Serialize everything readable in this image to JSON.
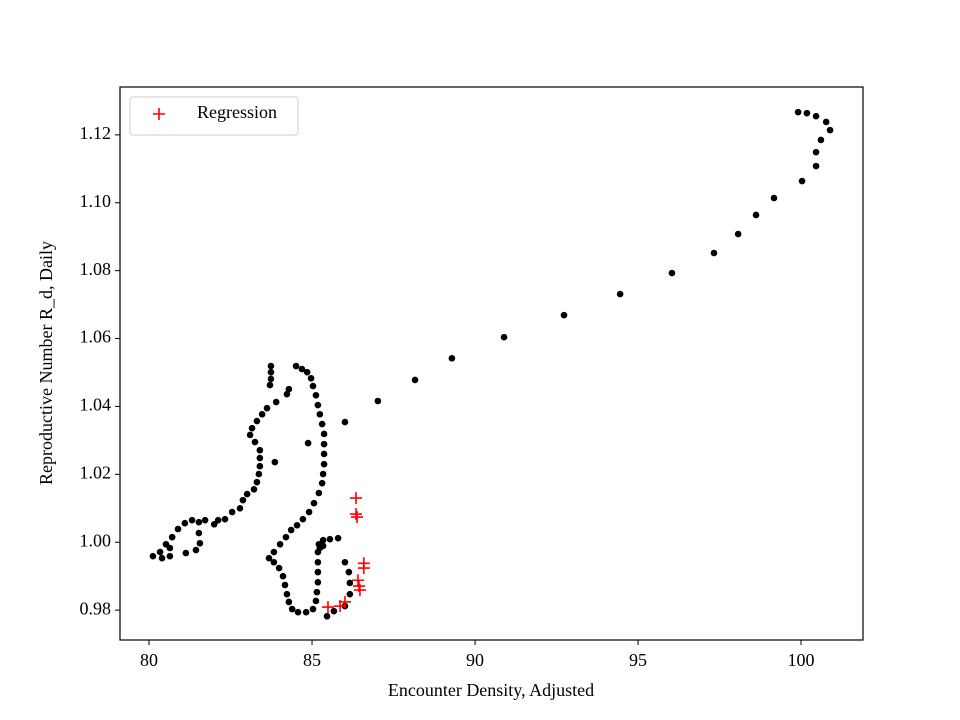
{
  "chart_data": {
    "type": "scatter",
    "xlabel": "Encounter Density, Adjusted",
    "ylabel": "Reproductive Number R_d, Daily",
    "xlim": [
      79.11,
      101.9
    ],
    "ylim": [
      0.9712,
      1.1341
    ],
    "xticks": [
      80,
      85,
      90,
      95,
      100
    ],
    "yticks": [
      0.98,
      {
        "value": 1,
        "label": "1.00"
      },
      1.02,
      1.04,
      1.06,
      1.08,
      {
        "value": 1.1,
        "label": "1.10"
      },
      1.12
    ],
    "legend": "upper left",
    "series": [
      {
        "color": "#000000",
        "marker": "circle",
        "x": [
          99.91,
          100.18,
          100.46,
          100.77,
          100.89,
          100.61,
          100.46,
          100.46,
          100.03,
          99.17,
          98.62,
          98.07,
          97.33,
          96.04,
          94.45,
          92.73,
          90.89,
          89.29,
          88.16,
          87.02,
          86.01,
          84.88,
          84.51,
          84.69,
          84.85,
          84.97,
          85.03,
          85.12,
          85.18,
          85.24,
          85.31,
          85.37,
          85.37,
          85.37,
          85.37,
          85.34,
          85.31,
          85.21,
          85.06,
          84.91,
          84.72,
          84.54,
          84.36,
          84.2,
          84.02,
          83.83,
          83.68,
          83.83,
          83.99,
          84.11,
          84.17,
          84.23,
          84.29,
          84.39,
          84.57,
          84.82,
          85.03,
          85.12,
          85.15,
          85.18,
          85.18,
          85.18,
          85.18,
          85.21,
          85.34,
          85.55,
          85.8,
          86.01,
          86.13,
          86.16,
          86.16,
          86.01,
          85.67,
          85.46,
          85.24,
          85.34,
          83.74,
          83.74,
          83.74,
          83.71,
          83.9,
          83.62,
          83.47,
          83.31,
          83.16,
          83.1,
          83.25,
          83.4,
          83.4,
          83.4,
          83.37,
          83.31,
          83.22,
          83.01,
          82.88,
          82.79,
          82.55,
          82.33,
          82.12,
          82.0,
          81.72,
          81.53,
          81.32,
          81.1,
          80.89,
          80.71,
          80.52,
          80.34,
          80.12,
          80.4,
          80.64,
          80.64,
          81.56,
          81.44,
          81.13,
          81.53,
          83.86,
          84.29,
          84.23
        ],
        "y": [
          1.1267,
          1.1264,
          1.1255,
          1.1238,
          1.1214,
          1.1185,
          1.1149,
          1.1108,
          1.1064,
          1.1014,
          1.0964,
          1.0908,
          1.0852,
          1.0793,
          1.0731,
          1.0669,
          1.0604,
          1.0542,
          1.0478,
          1.0416,
          1.0354,
          1.0292,
          1.0519,
          1.051,
          1.0501,
          1.0483,
          1.046,
          1.0433,
          1.0404,
          1.0377,
          1.0348,
          1.0319,
          1.0289,
          1.026,
          1.023,
          1.0201,
          1.0174,
          1.0145,
          1.0115,
          1.0089,
          1.0068,
          1.005,
          1.0036,
          1.0015,
          0.9994,
          0.9971,
          0.9953,
          0.9941,
          0.9924,
          0.99,
          0.9874,
          0.9847,
          0.9824,
          0.9803,
          0.9794,
          0.9794,
          0.9803,
          0.9827,
          0.9853,
          0.9882,
          0.9912,
          0.9941,
          0.9971,
          0.9994,
          1.0006,
          1.0009,
          1.0012,
          0.9941,
          0.9912,
          0.988,
          0.9847,
          0.9812,
          0.9797,
          0.9782,
          0.9983,
          0.9989,
          1.0519,
          1.0501,
          1.0481,
          1.0463,
          1.0413,
          1.0395,
          1.0377,
          1.0357,
          1.0336,
          1.0316,
          1.0295,
          1.0271,
          1.0248,
          1.0224,
          1.0201,
          1.0177,
          1.0156,
          1.0142,
          1.0124,
          1.01,
          1.0089,
          1.0068,
          1.0065,
          1.0053,
          1.0065,
          1.0059,
          1.0065,
          1.0056,
          1.0039,
          1.0015,
          0.9994,
          0.9971,
          0.9959,
          0.9953,
          0.9959,
          0.9983,
          0.9997,
          0.9977,
          0.9968,
          1.0027,
          1.0236,
          1.0451,
          1.0436
        ]
      },
      {
        "name": "Regression",
        "color": "#ff0000",
        "marker": "plus",
        "x": [
          86.35,
          86.35,
          86.38,
          86.59,
          86.59,
          86.41,
          86.44,
          86.47,
          85.49,
          85.86,
          86.01
        ],
        "y": [
          1.013,
          1.0083,
          1.0074,
          0.9938,
          0.9924,
          0.9888,
          0.9871,
          0.9859,
          0.9809,
          0.9812,
          0.9824
        ]
      }
    ]
  }
}
